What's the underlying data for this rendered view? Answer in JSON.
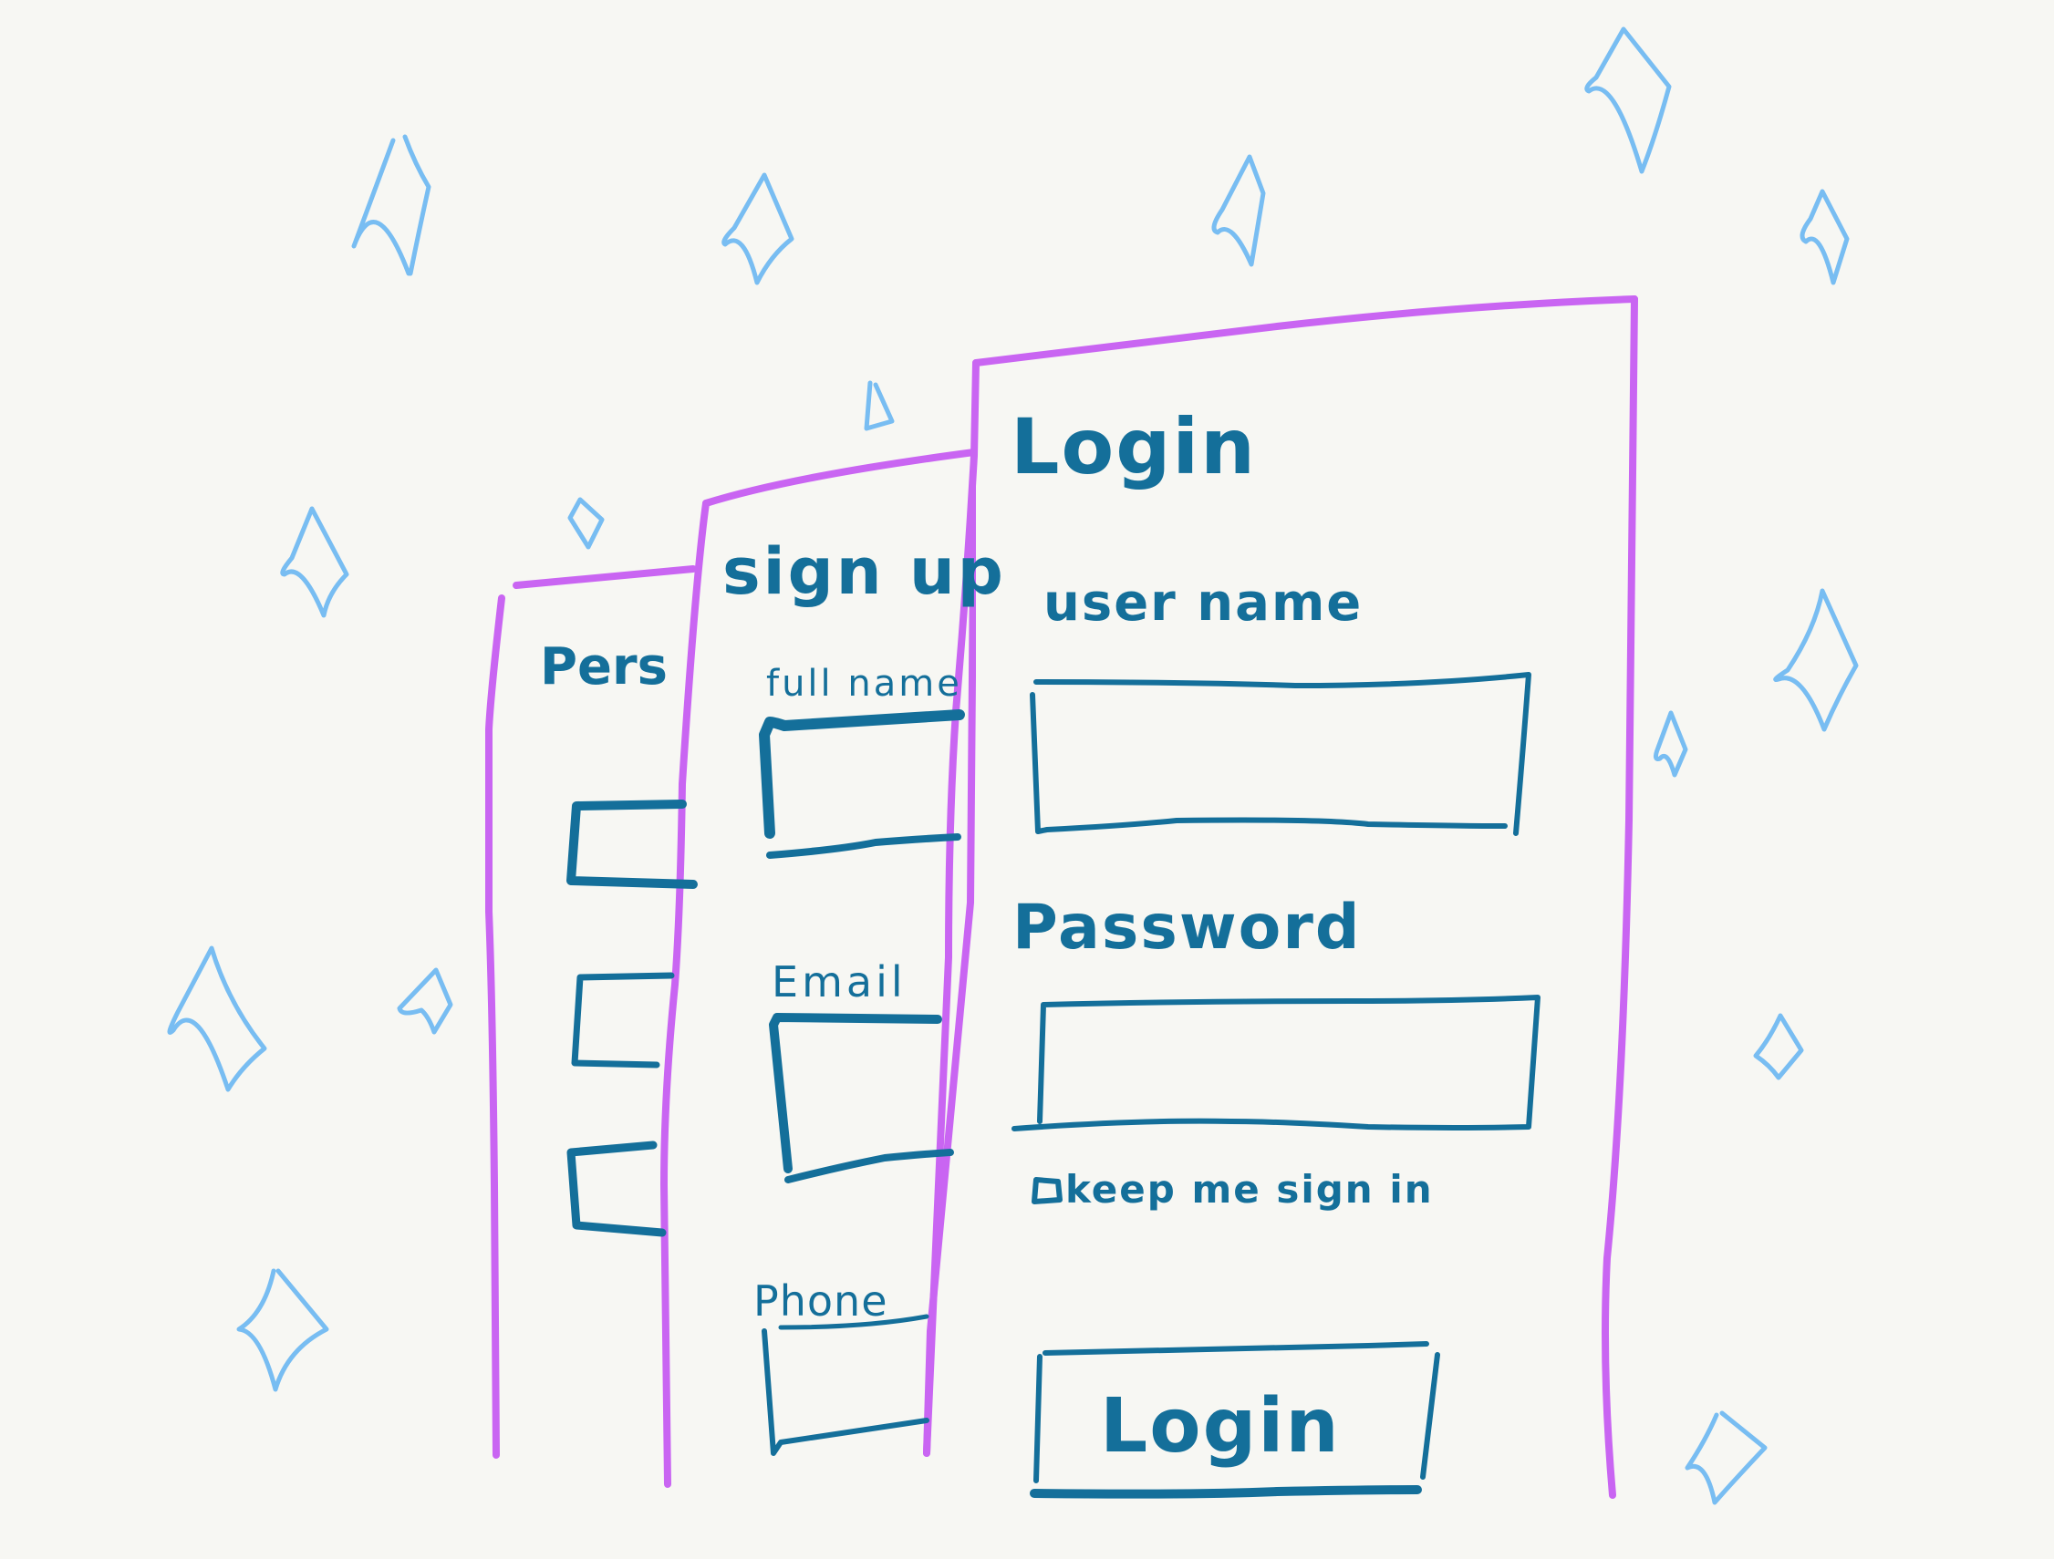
{
  "colors": {
    "background": "#f7f7f3",
    "card_outline": "#c965f2",
    "ink": "#146f9a",
    "sparkle": "#78bdf2"
  },
  "login_card": {
    "title": "Login",
    "username_label": "user name",
    "password_label": "Password",
    "keep_signed_in_label": "keep me sign in",
    "login_button_label": "Login"
  },
  "signup_card": {
    "title": "sign up",
    "fullname_label": "full name",
    "email_label": "Email",
    "phone_label": "Phone"
  },
  "personal_card": {
    "title": "Pers"
  },
  "decorations": {
    "icon": "sparkle-icon"
  }
}
